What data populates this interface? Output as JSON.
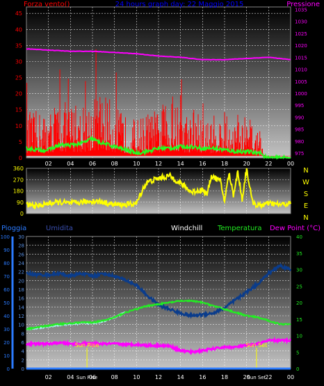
{
  "page": {
    "background": "#000000"
  },
  "colors": {
    "wind_red": "#ff0000",
    "wind_green": "#22ff22",
    "pressure": "#ff00ff",
    "direction": "#ffff00",
    "humidity": "#0a3c8c",
    "temperature": "#22ee22",
    "windchill": "#aaeeee",
    "dewpoint": "#ff00ff",
    "rain": "#2b7bff",
    "title": "#0000ff",
    "sun": "#ffff00",
    "axis_text": "#ffffff"
  },
  "top_panel": {
    "left_title": "Forza vento()",
    "center_title": "24 hours graph day:  22 Maggio 2015",
    "right_title": "Pressione"
  },
  "direction_panel": {
    "compass_labels": [
      "N",
      "W",
      "S",
      "E",
      "N"
    ]
  },
  "bottom_panel": {
    "legend": {
      "rain": "Pioggia",
      "humidity": "Umidita",
      "windchill": "Windchill",
      "temperature": "Temperatura",
      "dewpoint": "Dew Point (°C)"
    },
    "sun_rise_label": "Sun Rise",
    "sun_set_label": "Sun Set"
  },
  "chart_data": [
    {
      "type": "line",
      "title": "24 hours graph day:  22 Maggio 2015",
      "x_ticks": [
        "02",
        "04",
        "06",
        "08",
        "10",
        "12",
        "14",
        "16",
        "18",
        "20",
        "22",
        "00"
      ],
      "xlim": [
        0,
        24
      ],
      "y_left": {
        "label": "Forza vento()",
        "ticks": [
          0,
          5,
          10,
          15,
          20,
          25,
          30,
          35,
          40,
          45
        ],
        "ylim": [
          0,
          47
        ]
      },
      "y_right": {
        "label": "Pressione",
        "ticks": [
          975,
          980,
          985,
          990,
          995,
          1000,
          1005,
          1010,
          1015,
          1020,
          1025,
          1030,
          1035
        ],
        "ylim": [
          973,
          1036
        ]
      },
      "series": [
        {
          "name": "Raffica",
          "axis": "left",
          "style": "spiky",
          "x": [
            0,
            1,
            2,
            3,
            4,
            5,
            6,
            7,
            8,
            9,
            10,
            11,
            12,
            13,
            14,
            15,
            16,
            17,
            18,
            19,
            20,
            21,
            21.3,
            21.5,
            22,
            24
          ],
          "y": [
            10,
            11,
            11,
            13,
            13,
            12,
            15,
            16,
            12,
            10,
            9,
            11,
            11,
            13,
            12,
            10,
            9,
            10,
            10,
            9,
            8,
            7,
            5,
            1,
            0.5,
            0.5
          ]
        },
        {
          "name": "Vento medio",
          "axis": "left",
          "x": [
            0,
            1,
            2,
            3,
            4,
            5,
            6,
            6.5,
            7,
            8,
            9,
            10,
            11,
            12,
            13,
            14,
            15,
            16,
            17,
            18,
            19,
            20,
            21,
            21.3,
            21.5,
            22,
            24
          ],
          "y": [
            3,
            2.5,
            2.5,
            4,
            4,
            4.5,
            6,
            5,
            4.5,
            3.5,
            2.5,
            1.5,
            2,
            3,
            3,
            3.5,
            3.5,
            3,
            3,
            2.5,
            2,
            2,
            1.5,
            2,
            0.5,
            0,
            0
          ]
        },
        {
          "name": "Pressione",
          "axis": "right",
          "x": [
            0,
            2,
            4,
            6,
            8,
            10,
            12,
            14,
            16,
            18,
            20,
            22,
            24
          ],
          "y": [
            1018.5,
            1018,
            1017.5,
            1017.5,
            1017,
            1016.5,
            1015.5,
            1015,
            1014,
            1014,
            1014.5,
            1015,
            1014
          ]
        }
      ]
    },
    {
      "type": "line",
      "x_ticks": [],
      "xlim": [
        0,
        24
      ],
      "y": {
        "ticks": [
          0,
          90,
          180,
          270,
          360
        ],
        "ylim": [
          0,
          360
        ]
      },
      "series": [
        {
          "name": "Direzione vento",
          "x": [
            0,
            1,
            2,
            3,
            4,
            5,
            6,
            7,
            8,
            9,
            10,
            10.6,
            11,
            12,
            13,
            14,
            15,
            16,
            16.4,
            16.8,
            17.2,
            17.6,
            18,
            18.4,
            18.8,
            19.2,
            19.6,
            20,
            20.5,
            21,
            22,
            23,
            24
          ],
          "y": [
            70,
            60,
            80,
            90,
            80,
            90,
            100,
            90,
            70,
            70,
            80,
            200,
            250,
            280,
            300,
            240,
            170,
            190,
            150,
            300,
            280,
            260,
            100,
            320,
            150,
            330,
            110,
            360,
            100,
            60,
            80,
            70,
            80
          ]
        }
      ]
    },
    {
      "type": "line",
      "x_ticks": [
        "02",
        "04",
        "Sun Rise",
        "06",
        "08",
        "10",
        "12",
        "14",
        "16",
        "18",
        "20",
        "Sun Set",
        "22",
        "00"
      ],
      "xlim": [
        0,
        24
      ],
      "y_left_rain": {
        "label": "Pioggia",
        "ticks": [
          0,
          10,
          20,
          30,
          40,
          50,
          60,
          70,
          80,
          90,
          100
        ],
        "ylim": [
          0,
          100
        ]
      },
      "y_left_temp": {
        "ticks": [
          0,
          2,
          4,
          6,
          8,
          10,
          12,
          14,
          16,
          18,
          20,
          22,
          24,
          26,
          28,
          30
        ],
        "ylim": [
          0,
          30
        ]
      },
      "y_right": {
        "label": "Dew Point (°C)",
        "ticks": [
          0,
          5,
          10,
          15,
          20,
          25,
          30,
          35,
          40
        ],
        "ylim": [
          0,
          40
        ]
      },
      "sun_rise_hour": 5.5,
      "sun_set_hour": 20.9,
      "series": [
        {
          "name": "Umidita",
          "axis": "rain",
          "x": [
            0,
            1,
            2,
            3,
            4,
            5,
            6,
            7,
            8,
            9,
            10,
            11,
            12,
            13,
            14,
            15,
            16,
            17,
            18,
            19,
            20,
            21,
            22,
            23,
            24
          ],
          "y": [
            72,
            71,
            71,
            72,
            70,
            72,
            70,
            72,
            70,
            67,
            63,
            55,
            48,
            45,
            42,
            40,
            41,
            42,
            46,
            52,
            58,
            64,
            72,
            78,
            75
          ]
        },
        {
          "name": "Temperatura",
          "axis": "right",
          "x": [
            0,
            1,
            2,
            3,
            4,
            5,
            6,
            7,
            8,
            9,
            10,
            11,
            12,
            13,
            14,
            15,
            16,
            17,
            18,
            19,
            20,
            21,
            22,
            23,
            24
          ],
          "y": [
            12,
            12.5,
            13,
            13.5,
            13.7,
            14,
            14,
            14.5,
            15.5,
            17,
            18,
            19,
            19.5,
            20,
            20.5,
            20.5,
            20,
            19,
            18,
            17,
            16,
            15.5,
            14.5,
            13.5,
            13.5
          ]
        },
        {
          "name": "Windchill",
          "axis": "right",
          "x": [
            0,
            1,
            2,
            3,
            4,
            5,
            6,
            7,
            8,
            9
          ],
          "y": [
            12,
            12.3,
            12.7,
            13.2,
            13.5,
            13.7,
            13.8,
            14.3,
            15.5,
            17
          ]
        },
        {
          "name": "Dew Point",
          "axis": "right",
          "x": [
            0,
            1,
            2,
            3,
            4,
            5,
            6,
            7,
            8,
            9,
            10,
            11,
            12,
            13,
            14,
            15,
            16,
            17,
            18,
            19,
            20,
            21,
            22,
            23,
            24
          ],
          "y": [
            7.5,
            7.5,
            7.5,
            7.8,
            7.5,
            7.5,
            7.5,
            7.5,
            7.5,
            7.3,
            7.3,
            7,
            7,
            6.8,
            5.5,
            5,
            5.5,
            6,
            6.5,
            6.5,
            7,
            7.5,
            8.5,
            8.5,
            8.5
          ]
        },
        {
          "name": "Pioggia",
          "axis": "rain",
          "x": [
            0,
            24
          ],
          "y": [
            0,
            0
          ]
        }
      ]
    }
  ]
}
